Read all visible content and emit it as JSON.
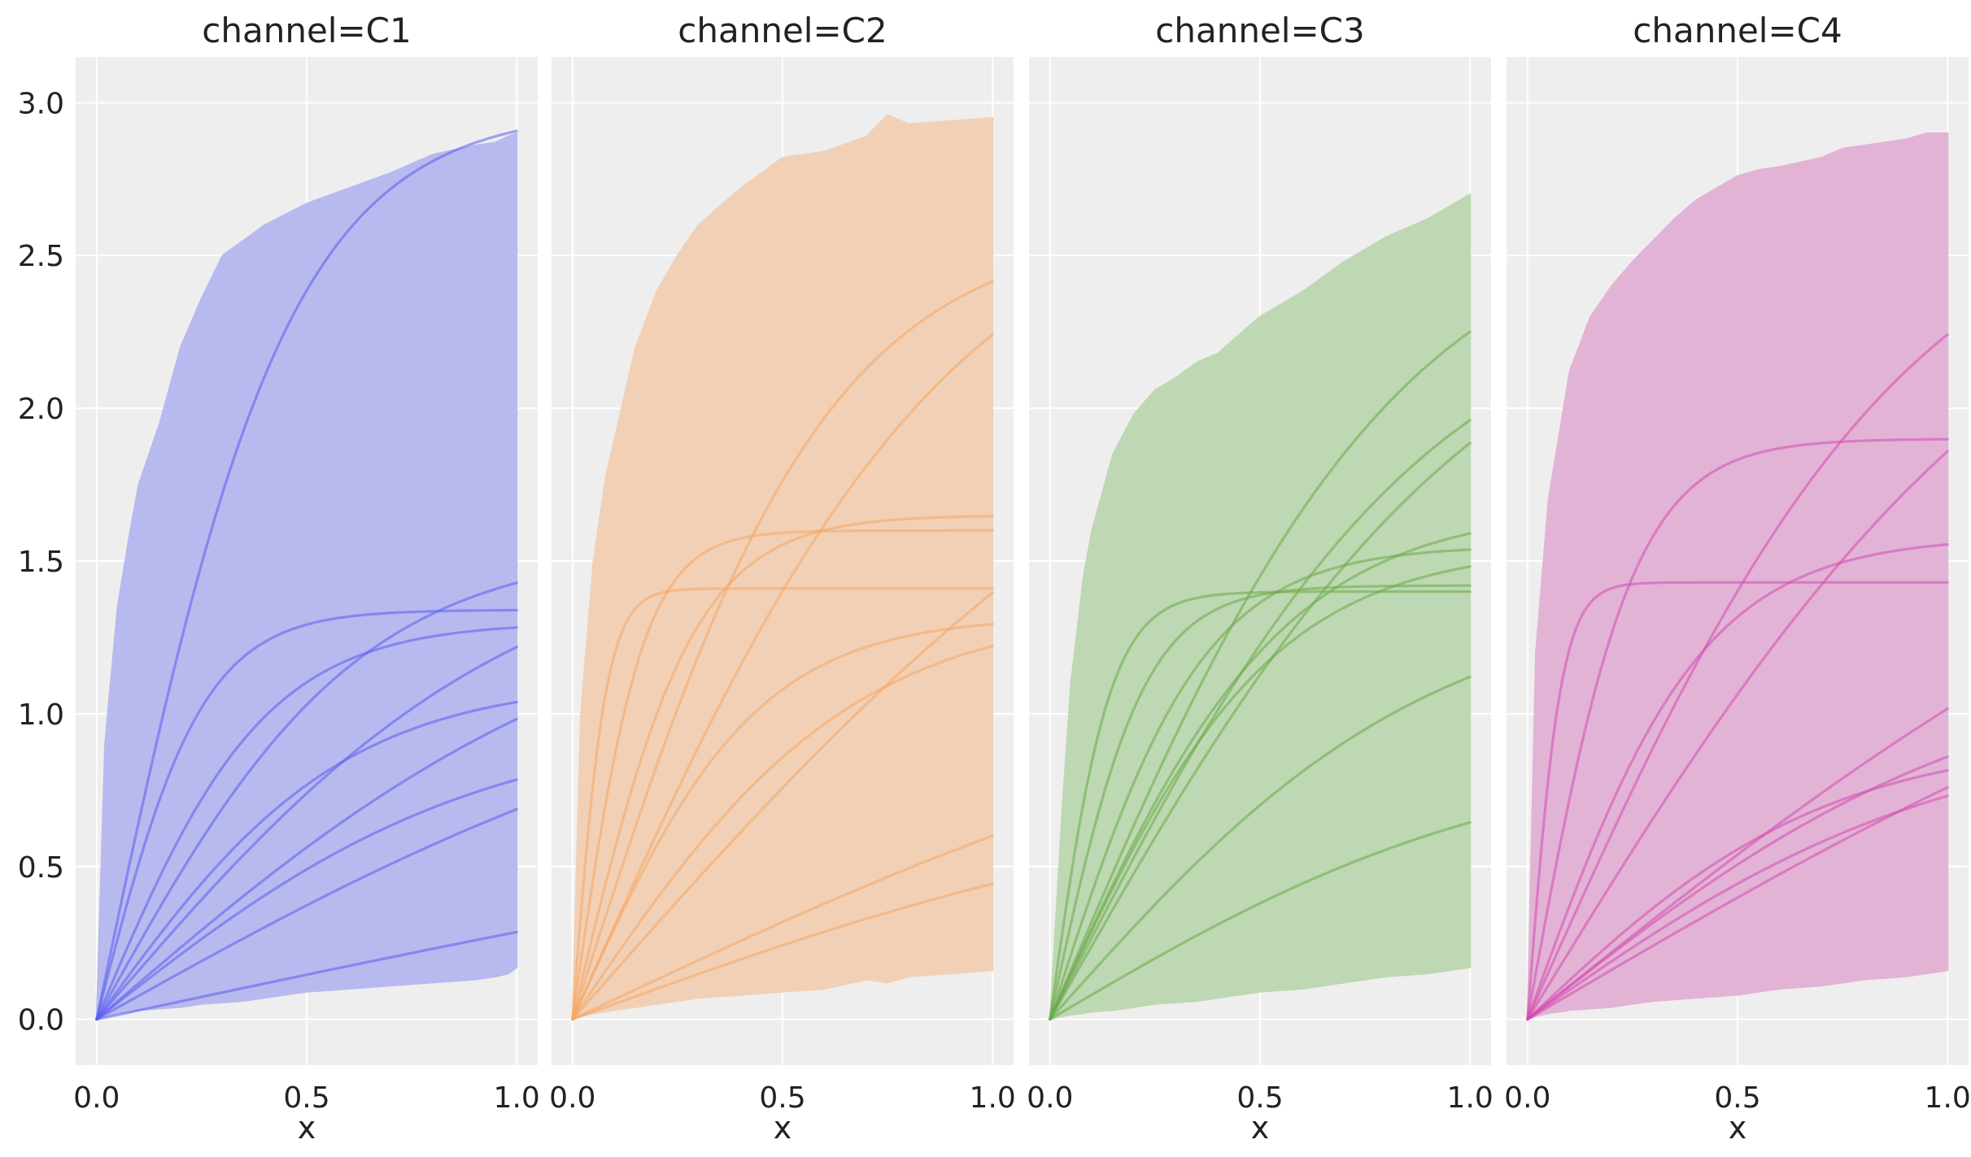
{
  "chart_data": [
    {
      "type": "area",
      "title": "channel=C1",
      "xlabel": "x",
      "ylabel": "",
      "xlim": [
        -0.05,
        1.05
      ],
      "ylim": [
        -0.15,
        3.15
      ],
      "x_ticks": [
        "0.0",
        "0.5",
        "1.0"
      ],
      "y_ticks": [
        "0.0",
        "0.5",
        "1.0",
        "1.5",
        "2.0",
        "2.5",
        "3.0"
      ],
      "color": "#5a5ef0",
      "band_color": "#b8b9ee",
      "band": {
        "x": [
          0.0,
          0.02,
          0.05,
          0.08,
          0.1,
          0.15,
          0.2,
          0.25,
          0.3,
          0.35,
          0.4,
          0.5,
          0.6,
          0.7,
          0.8,
          0.9,
          0.95,
          0.98,
          1.0
        ],
        "upper": [
          0.0,
          0.9,
          1.35,
          1.6,
          1.75,
          1.95,
          2.2,
          2.36,
          2.5,
          2.55,
          2.6,
          2.67,
          2.72,
          2.77,
          2.83,
          2.86,
          2.87,
          2.89,
          2.9
        ],
        "lower": [
          0.0,
          0.01,
          0.02,
          0.025,
          0.03,
          0.035,
          0.04,
          0.05,
          0.055,
          0.06,
          0.07,
          0.09,
          0.1,
          0.11,
          0.12,
          0.13,
          0.14,
          0.15,
          0.17
        ]
      },
      "curves": [
        {
          "a": 2.98,
          "b": 4.4
        },
        {
          "a": 0.98,
          "b": 0.6
        },
        {
          "a": 1.34,
          "b": 8.0
        },
        {
          "a": 1.6,
          "b": 2.0
        },
        {
          "a": 1.55,
          "b": 3.2
        },
        {
          "a": 1.3,
          "b": 5.0
        },
        {
          "a": 1.11,
          "b": 3.4
        },
        {
          "a": 1.48,
          "b": 1.6
        },
        {
          "a": 1.28,
          "b": 1.2
        },
        {
          "a": 0.98,
          "b": 2.2
        }
      ]
    },
    {
      "type": "area",
      "title": "channel=C2",
      "xlabel": "x",
      "ylabel": "",
      "xlim": [
        -0.05,
        1.05
      ],
      "ylim": [
        -0.15,
        3.15
      ],
      "x_ticks": [
        "0.0",
        "0.5",
        "1.0"
      ],
      "y_ticks": [
        "0.0",
        "0.5",
        "1.0",
        "1.5",
        "2.0",
        "2.5",
        "3.0"
      ],
      "color": "#f5a563",
      "band_color": "#f1d0b6",
      "band": {
        "x": [
          0.0,
          0.02,
          0.05,
          0.08,
          0.1,
          0.15,
          0.2,
          0.25,
          0.3,
          0.35,
          0.4,
          0.5,
          0.6,
          0.7,
          0.75,
          0.8,
          0.9,
          1.0
        ],
        "upper": [
          0.0,
          1.0,
          1.5,
          1.78,
          1.9,
          2.2,
          2.38,
          2.5,
          2.6,
          2.66,
          2.72,
          2.82,
          2.84,
          2.89,
          2.96,
          2.93,
          2.94,
          2.95
        ],
        "lower": [
          0.0,
          0.01,
          0.02,
          0.025,
          0.03,
          0.04,
          0.05,
          0.06,
          0.07,
          0.075,
          0.08,
          0.09,
          0.1,
          0.13,
          0.12,
          0.14,
          0.15,
          0.16
        ]
      },
      "curves": [
        {
          "a": 2.6,
          "b": 3.3
        },
        {
          "a": 2.8,
          "b": 2.2
        },
        {
          "a": 1.6,
          "b": 12.0
        },
        {
          "a": 1.41,
          "b": 25.0
        },
        {
          "a": 1.65,
          "b": 7.0
        },
        {
          "a": 2.6,
          "b": 1.2
        },
        {
          "a": 1.35,
          "b": 3.0
        },
        {
          "a": 1.32,
          "b": 4.6
        },
        {
          "a": 1.3,
          "b": 1.0
        },
        {
          "a": 0.8,
          "b": 1.25
        }
      ]
    },
    {
      "type": "area",
      "title": "channel=C3",
      "xlabel": "x",
      "ylabel": "",
      "xlim": [
        -0.05,
        1.05
      ],
      "ylim": [
        -0.15,
        3.15
      ],
      "x_ticks": [
        "0.0",
        "0.5",
        "1.0"
      ],
      "y_ticks": [
        "0.0",
        "0.5",
        "1.0",
        "1.5",
        "2.0",
        "2.5",
        "3.0"
      ],
      "color": "#6aaa48",
      "band_color": "#bdd8b2",
      "band": {
        "x": [
          0.0,
          0.03,
          0.05,
          0.08,
          0.1,
          0.15,
          0.2,
          0.25,
          0.3,
          0.35,
          0.4,
          0.45,
          0.5,
          0.6,
          0.7,
          0.8,
          0.9,
          1.0
        ],
        "upper": [
          0.0,
          0.7,
          1.1,
          1.45,
          1.6,
          1.85,
          1.98,
          2.06,
          2.1,
          2.15,
          2.18,
          2.24,
          2.3,
          2.38,
          2.48,
          2.56,
          2.62,
          2.7
        ],
        "lower": [
          0.0,
          0.01,
          0.015,
          0.02,
          0.025,
          0.03,
          0.04,
          0.05,
          0.055,
          0.06,
          0.07,
          0.08,
          0.09,
          0.1,
          0.12,
          0.14,
          0.15,
          0.17
        ]
      },
      "curves": [
        {
          "a": 2.7,
          "b": 2.4
        },
        {
          "a": 2.55,
          "b": 1.9
        },
        {
          "a": 2.45,
          "b": 2.2
        },
        {
          "a": 1.42,
          "b": 9.0
        },
        {
          "a": 1.55,
          "b": 5.5
        },
        {
          "a": 1.68,
          "b": 3.6
        },
        {
          "a": 1.4,
          "b": 14.0
        },
        {
          "a": 1.55,
          "b": 3.8
        },
        {
          "a": 1.4,
          "b": 2.2
        },
        {
          "a": 0.9,
          "b": 1.8
        }
      ]
    },
    {
      "type": "area",
      "title": "channel=C4",
      "xlabel": "x",
      "ylabel": "",
      "xlim": [
        -0.05,
        1.05
      ],
      "ylim": [
        -0.15,
        3.15
      ],
      "x_ticks": [
        "0.0",
        "0.5",
        "1.0"
      ],
      "y_ticks": [
        "0.0",
        "0.5",
        "1.0",
        "1.5",
        "2.0",
        "2.5",
        "3.0"
      ],
      "color": "#d44ab2",
      "band_color": "#e2b3d5",
      "band": {
        "x": [
          0.0,
          0.02,
          0.05,
          0.08,
          0.1,
          0.15,
          0.2,
          0.25,
          0.3,
          0.35,
          0.4,
          0.5,
          0.55,
          0.6,
          0.7,
          0.75,
          0.8,
          0.9,
          0.95,
          1.0
        ],
        "upper": [
          0.0,
          1.2,
          1.7,
          1.95,
          2.12,
          2.3,
          2.4,
          2.48,
          2.55,
          2.62,
          2.68,
          2.76,
          2.78,
          2.79,
          2.82,
          2.85,
          2.86,
          2.88,
          2.9,
          2.9
        ],
        "lower": [
          0.0,
          0.01,
          0.02,
          0.025,
          0.03,
          0.035,
          0.04,
          0.05,
          0.06,
          0.065,
          0.07,
          0.08,
          0.09,
          0.1,
          0.11,
          0.12,
          0.13,
          0.14,
          0.15,
          0.16
        ]
      },
      "curves": [
        {
          "a": 1.43,
          "b": 25.0
        },
        {
          "a": 1.9,
          "b": 8.0
        },
        {
          "a": 2.8,
          "b": 2.2
        },
        {
          "a": 1.58,
          "b": 4.8
        },
        {
          "a": 2.8,
          "b": 1.6
        },
        {
          "a": 2.2,
          "b": 1.0
        },
        {
          "a": 1.8,
          "b": 0.9
        },
        {
          "a": 1.2,
          "b": 1.8
        },
        {
          "a": 0.96,
          "b": 2.0
        },
        {
          "a": 0.92,
          "b": 2.8
        }
      ]
    }
  ]
}
